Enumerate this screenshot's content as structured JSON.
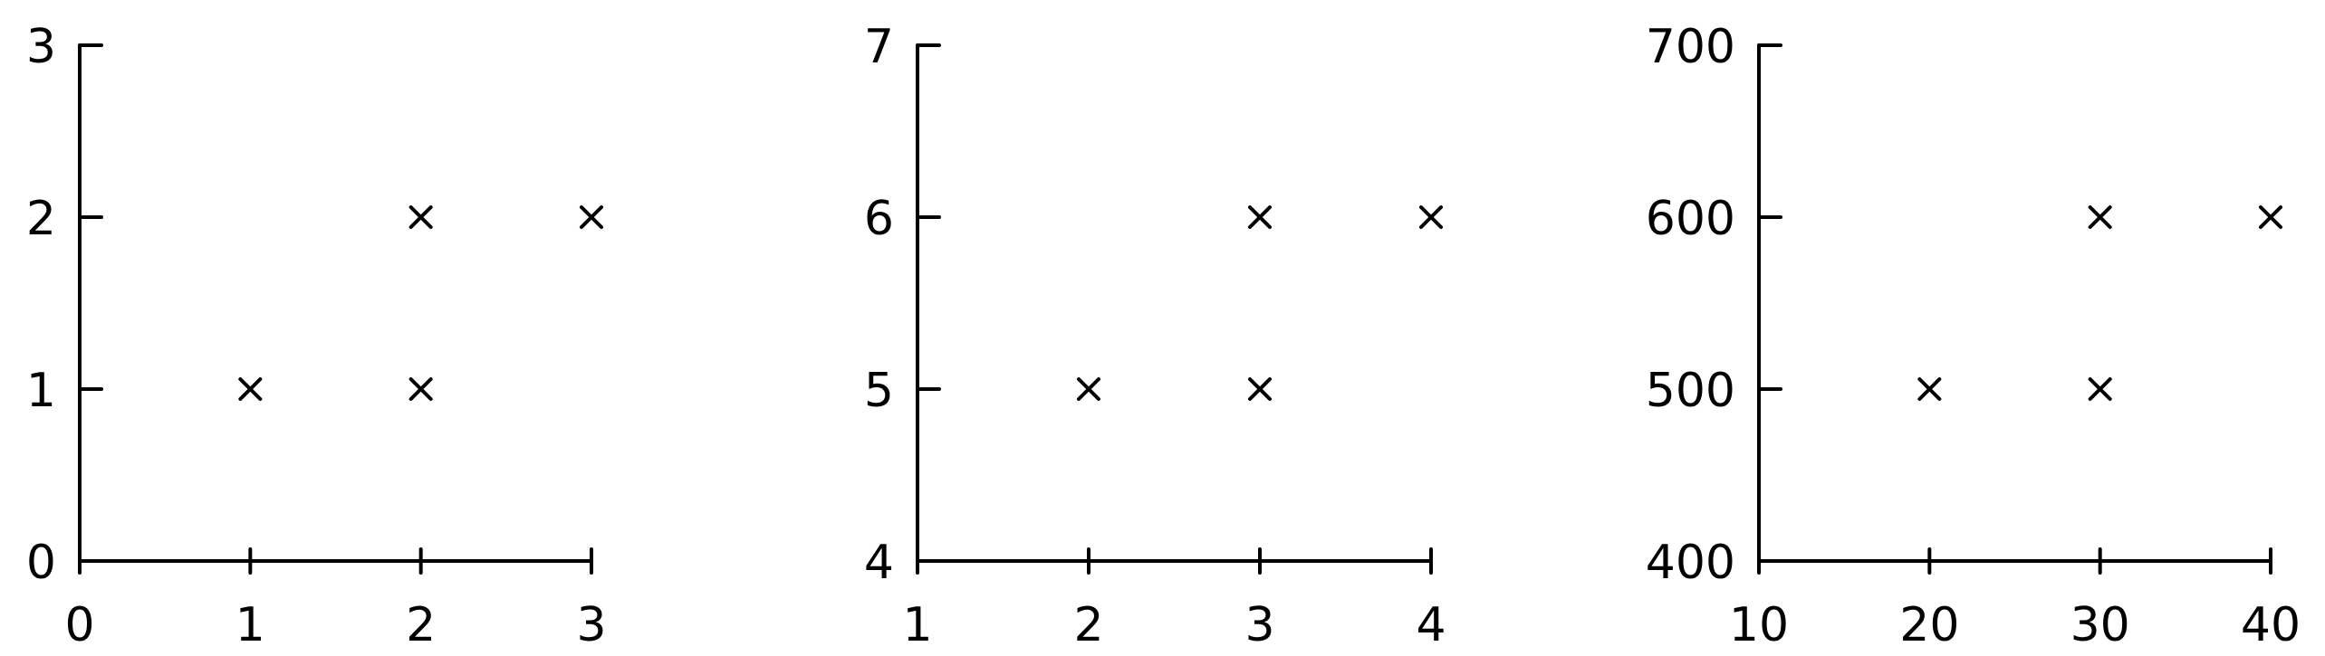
{
  "chart_data": [
    {
      "type": "scatter",
      "title": "",
      "xlabel": "",
      "ylabel": "",
      "xlim": [
        0,
        3
      ],
      "ylim": [
        0,
        3
      ],
      "xticks": [
        0,
        1,
        2,
        3
      ],
      "xtick_labels": [
        "0",
        "1",
        "2",
        "3"
      ],
      "yticks": [
        0,
        1,
        2,
        3
      ],
      "ytick_labels": [
        "0",
        "1",
        "2",
        "3"
      ],
      "grid": false,
      "marker": "x",
      "points": [
        {
          "x": 1,
          "y": 1
        },
        {
          "x": 2,
          "y": 1
        },
        {
          "x": 2,
          "y": 2
        },
        {
          "x": 3,
          "y": 2
        }
      ]
    },
    {
      "type": "scatter",
      "title": "",
      "xlabel": "",
      "ylabel": "",
      "xlim": [
        1,
        4
      ],
      "ylim": [
        4,
        7
      ],
      "xticks": [
        1,
        2,
        3,
        4
      ],
      "xtick_labels": [
        "1",
        "2",
        "3",
        "4"
      ],
      "yticks": [
        4,
        5,
        6,
        7
      ],
      "ytick_labels": [
        "4",
        "5",
        "6",
        "7"
      ],
      "grid": false,
      "marker": "x",
      "points": [
        {
          "x": 2,
          "y": 5
        },
        {
          "x": 3,
          "y": 5
        },
        {
          "x": 3,
          "y": 6
        },
        {
          "x": 4,
          "y": 6
        }
      ]
    },
    {
      "type": "scatter",
      "title": "",
      "xlabel": "",
      "ylabel": "",
      "xlim": [
        10,
        40
      ],
      "ylim": [
        400,
        700
      ],
      "xticks": [
        10,
        20,
        30,
        40
      ],
      "xtick_labels": [
        "10",
        "20",
        "30",
        "40"
      ],
      "yticks": [
        400,
        500,
        600,
        700
      ],
      "ytick_labels": [
        "400",
        "500",
        "600",
        "700"
      ],
      "grid": false,
      "marker": "x",
      "points": [
        {
          "x": 20,
          "y": 500
        },
        {
          "x": 30,
          "y": 500
        },
        {
          "x": 30,
          "y": 600
        },
        {
          "x": 40,
          "y": 600
        }
      ]
    }
  ]
}
